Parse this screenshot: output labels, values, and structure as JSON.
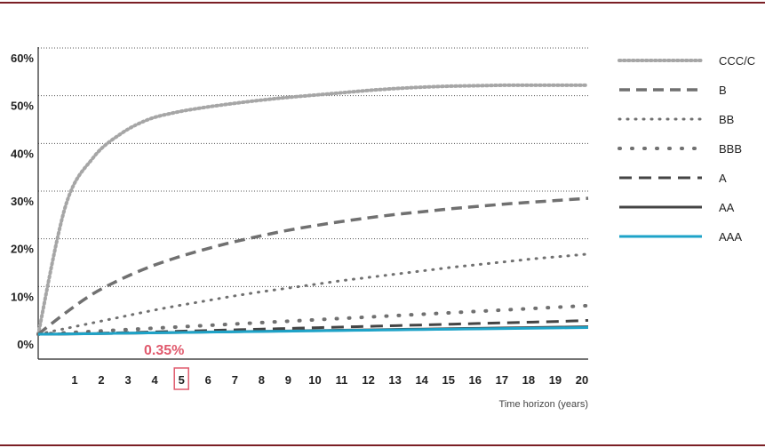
{
  "colors": {
    "rule": "#7b1f25",
    "annotation": "#e05a6d",
    "aaa": "#1ea3c8",
    "gray_dark": "#444444",
    "gray_mid": "#707070",
    "gray_light": "#a6a6a6"
  },
  "chart_data": {
    "type": "line",
    "title": "",
    "xlabel": "Time horizon (years)",
    "ylabel": "",
    "x": [
      0,
      1,
      2,
      3,
      4,
      5,
      6,
      7,
      8,
      9,
      10,
      11,
      12,
      13,
      14,
      15,
      16,
      17,
      18,
      19,
      20
    ],
    "xticks": [
      "1",
      "2",
      "3",
      "4",
      "5",
      "6",
      "7",
      "8",
      "9",
      "10",
      "11",
      "12",
      "13",
      "14",
      "15",
      "16",
      "17",
      "18",
      "19",
      "20"
    ],
    "yticks": [
      "0%",
      "10%",
      "20%",
      "30%",
      "40%",
      "50%",
      "60%"
    ],
    "yticks_values": [
      0,
      10,
      20,
      30,
      40,
      50,
      60
    ],
    "ylim": [
      0,
      60
    ],
    "xlim": [
      0,
      20
    ],
    "grid": true,
    "legend_position": "right",
    "highlight_x": 5,
    "annotation": {
      "text": "0.35%",
      "x": 5,
      "y": 0.35
    },
    "series": [
      {
        "name": "CCC/C",
        "color": "#a6a6a6",
        "style": "dense-dot",
        "values": [
          0,
          27,
          37,
          42,
          45,
          46.5,
          47.5,
          48.3,
          49,
          49.6,
          50.1,
          50.6,
          51.1,
          51.5,
          51.8,
          52.0,
          52.1,
          52.2,
          52.2,
          52.2,
          52.2
        ]
      },
      {
        "name": "B",
        "color": "#707070",
        "style": "dash",
        "values": [
          0,
          4.5,
          8.5,
          11.5,
          14,
          16,
          17.7,
          19.2,
          20.5,
          21.7,
          22.7,
          23.6,
          24.4,
          25.1,
          25.7,
          26.3,
          26.8,
          27.3,
          27.7,
          28.1,
          28.5
        ]
      },
      {
        "name": "BB",
        "color": "#707070",
        "style": "dot",
        "values": [
          0,
          1.2,
          2.4,
          3.6,
          4.8,
          5.9,
          6.9,
          7.9,
          8.8,
          9.6,
          10.4,
          11.2,
          11.9,
          12.6,
          13.3,
          14.0,
          14.6,
          15.2,
          15.8,
          16.3,
          16.8
        ]
      },
      {
        "name": "BBB",
        "color": "#707070",
        "style": "sparse-dot",
        "values": [
          0,
          0.3,
          0.6,
          0.9,
          1.2,
          1.5,
          1.8,
          2.1,
          2.4,
          2.7,
          3.0,
          3.3,
          3.6,
          3.9,
          4.2,
          4.5,
          4.8,
          5.1,
          5.4,
          5.7,
          6.0
        ]
      },
      {
        "name": "A",
        "color": "#444444",
        "style": "long-dash",
        "values": [
          0,
          0.08,
          0.18,
          0.3,
          0.45,
          0.6,
          0.75,
          0.9,
          1.05,
          1.2,
          1.35,
          1.5,
          1.65,
          1.8,
          1.95,
          2.1,
          2.25,
          2.4,
          2.55,
          2.7,
          2.9
        ]
      },
      {
        "name": "AA",
        "color": "#444444",
        "style": "solid",
        "values": [
          0,
          0.05,
          0.12,
          0.2,
          0.28,
          0.36,
          0.44,
          0.52,
          0.6,
          0.68,
          0.76,
          0.84,
          0.92,
          1.0,
          1.08,
          1.16,
          1.24,
          1.32,
          1.4,
          1.48,
          1.55
        ]
      },
      {
        "name": "AAA",
        "color": "#1ea3c8",
        "style": "solid-thick",
        "values": [
          0,
          0.05,
          0.12,
          0.2,
          0.28,
          0.35,
          0.42,
          0.49,
          0.56,
          0.63,
          0.7,
          0.77,
          0.84,
          0.91,
          0.98,
          1.05,
          1.12,
          1.19,
          1.26,
          1.33,
          1.4
        ]
      }
    ]
  }
}
